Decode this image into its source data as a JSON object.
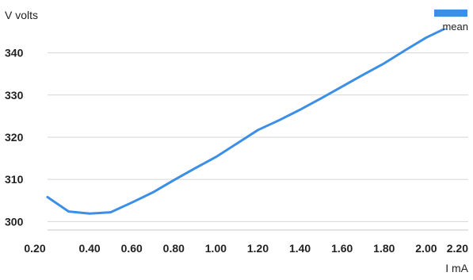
{
  "chart_data": {
    "type": "line",
    "title": "",
    "xlabel": "I mA",
    "ylabel": "V volts",
    "xlim": [
      0.2,
      2.2
    ],
    "ylim": [
      298,
      345
    ],
    "xticks": [
      0.2,
      0.4,
      0.6,
      0.8,
      1.0,
      1.2,
      1.4,
      1.6,
      1.8,
      2.0,
      2.2
    ],
    "xtick_labels": [
      "0.20",
      "0.40",
      "0.60",
      "0.80",
      "1.00",
      "1.20",
      "1.40",
      "1.60",
      "1.80",
      "2.00",
      "2.20"
    ],
    "yticks": [
      300,
      310,
      320,
      330,
      340
    ],
    "ytick_labels": [
      "300",
      "310",
      "320",
      "330",
      "340"
    ],
    "grid": "horizontal",
    "legend_position": "top-right",
    "series": [
      {
        "name": "mean",
        "color": "#3b8fe6",
        "x": [
          0.2,
          0.3,
          0.4,
          0.5,
          0.6,
          0.7,
          0.8,
          0.9,
          1.0,
          1.1,
          1.2,
          1.3,
          1.4,
          1.5,
          1.6,
          1.7,
          1.8,
          1.9,
          2.0,
          2.1,
          2.2
        ],
        "y": [
          305.8,
          302.4,
          301.9,
          302.2,
          304.5,
          306.9,
          309.8,
          312.6,
          315.3,
          318.5,
          321.7,
          324.0,
          326.5,
          329.2,
          332.0,
          334.8,
          337.5,
          340.6,
          343.6,
          346.0,
          348.0
        ]
      }
    ]
  }
}
